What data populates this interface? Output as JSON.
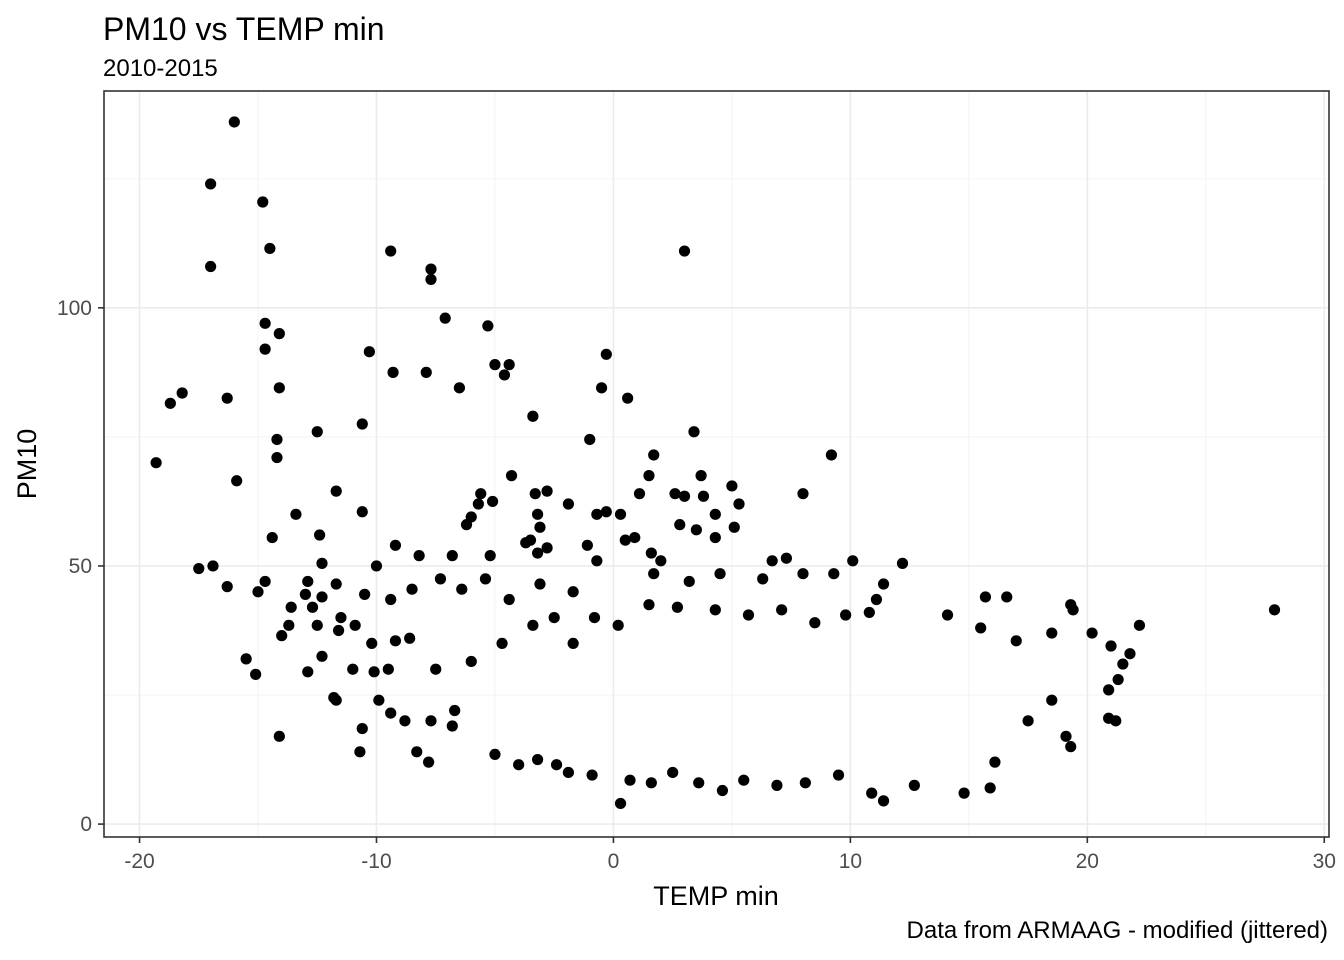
{
  "chart_data": {
    "type": "scatter",
    "title": "PM10 vs TEMP min",
    "subtitle": "2010-2015",
    "xlabel": "TEMP min",
    "ylabel": "PM10",
    "caption": "Data from ARMAAG - modified (jittered)",
    "xlim": [
      -21.5,
      30.2
    ],
    "ylim": [
      -2.5,
      142
    ],
    "xticks": [
      -20,
      -10,
      0,
      10,
      20,
      30
    ],
    "xtick_labels": [
      "-20",
      "-10",
      "0",
      "10",
      "20",
      "30"
    ],
    "yticks": [
      0,
      50,
      100
    ],
    "ytick_labels": [
      "0",
      "50",
      "100"
    ],
    "grid": true,
    "legend": "none",
    "point_color": "#000000",
    "points": [
      [
        -16,
        136
      ],
      [
        -17,
        124
      ],
      [
        -14.8,
        120.5
      ],
      [
        -14.5,
        111.5
      ],
      [
        -17,
        108
      ],
      [
        -9.4,
        111
      ],
      [
        -7.7,
        107.5
      ],
      [
        -7.7,
        105.5
      ],
      [
        3,
        111
      ],
      [
        -7.1,
        98
      ],
      [
        -5.3,
        96.5
      ],
      [
        -14.7,
        97
      ],
      [
        -14.7,
        92
      ],
      [
        -14.1,
        95
      ],
      [
        -10.3,
        91.5
      ],
      [
        -0.3,
        91
      ],
      [
        -5,
        89
      ],
      [
        -4.4,
        89
      ],
      [
        -9.3,
        87.5
      ],
      [
        -7.9,
        87.5
      ],
      [
        -4.6,
        87
      ],
      [
        -6.5,
        84.5
      ],
      [
        -0.5,
        84.5
      ],
      [
        0.6,
        82.5
      ],
      [
        -18.2,
        83.5
      ],
      [
        -18.7,
        81.5
      ],
      [
        -16.3,
        82.5
      ],
      [
        -14.1,
        84.5
      ],
      [
        -10.6,
        77.5
      ],
      [
        -12.5,
        76
      ],
      [
        -14.2,
        74.5
      ],
      [
        -14.2,
        71
      ],
      [
        -3.4,
        79
      ],
      [
        -1,
        74.5
      ],
      [
        3.4,
        76
      ],
      [
        1.7,
        71.5
      ],
      [
        1.5,
        67.5
      ],
      [
        3.7,
        67.5
      ],
      [
        9.2,
        71.5
      ],
      [
        -19.3,
        70
      ],
      [
        -15.9,
        66.5
      ],
      [
        -4.3,
        67.5
      ],
      [
        -11.7,
        64.5
      ],
      [
        -13.4,
        60
      ],
      [
        -10.6,
        60.5
      ],
      [
        -2.8,
        64.5
      ],
      [
        -3.3,
        64
      ],
      [
        -1.9,
        62
      ],
      [
        -5.7,
        62
      ],
      [
        -5.1,
        62.5
      ],
      [
        -5.6,
        64
      ],
      [
        -6.2,
        58
      ],
      [
        -3.2,
        60
      ],
      [
        -6,
        59.5
      ],
      [
        -3.1,
        57.5
      ],
      [
        1.1,
        64
      ],
      [
        2.6,
        64
      ],
      [
        3,
        63.5
      ],
      [
        3.8,
        63.5
      ],
      [
        5,
        65.5
      ],
      [
        5.3,
        62
      ],
      [
        -0.7,
        60
      ],
      [
        -0.3,
        60.5
      ],
      [
        0.3,
        60
      ],
      [
        2.8,
        58
      ],
      [
        4.3,
        60
      ],
      [
        5.1,
        57.5
      ],
      [
        8,
        64
      ],
      [
        -14.4,
        55.5
      ],
      [
        -12.4,
        56
      ],
      [
        -9.2,
        54
      ],
      [
        -3.7,
        54.5
      ],
      [
        -3.5,
        55
      ],
      [
        -2.8,
        53.5
      ],
      [
        -1.1,
        54
      ],
      [
        0.5,
        55
      ],
      [
        0.9,
        55.5
      ],
      [
        3.5,
        57
      ],
      [
        4.3,
        55.5
      ],
      [
        -16.9,
        50
      ],
      [
        -17.5,
        49.5
      ],
      [
        -12.3,
        50.5
      ],
      [
        -10,
        50
      ],
      [
        -8.2,
        52
      ],
      [
        -6.8,
        52
      ],
      [
        -5.2,
        52
      ],
      [
        -3.2,
        52.5
      ],
      [
        -0.7,
        51
      ],
      [
        1.6,
        52.5
      ],
      [
        2,
        51
      ],
      [
        6.7,
        51
      ],
      [
        7.3,
        51.5
      ],
      [
        10.1,
        51
      ],
      [
        12.2,
        50.5
      ],
      [
        -16.3,
        46
      ],
      [
        -14.7,
        47
      ],
      [
        -12.9,
        47
      ],
      [
        -11.7,
        46.5
      ],
      [
        -15,
        45
      ],
      [
        -13,
        44.5
      ],
      [
        -12.3,
        44
      ],
      [
        -10.5,
        44.5
      ],
      [
        -9.4,
        43.5
      ],
      [
        -8.5,
        45.5
      ],
      [
        -7.3,
        47.5
      ],
      [
        -6.4,
        45.5
      ],
      [
        -5.4,
        47.5
      ],
      [
        -4.4,
        43.5
      ],
      [
        -3.1,
        46.5
      ],
      [
        -1.7,
        45
      ],
      [
        1.7,
        48.5
      ],
      [
        3.2,
        47
      ],
      [
        4.5,
        48.5
      ],
      [
        6.3,
        47.5
      ],
      [
        8,
        48.5
      ],
      [
        9.3,
        48.5
      ],
      [
        11.4,
        46.5
      ],
      [
        15.7,
        44
      ],
      [
        16.6,
        44
      ],
      [
        -13.6,
        42
      ],
      [
        -12.7,
        42
      ],
      [
        -11.5,
        40
      ],
      [
        -10.9,
        38.5
      ],
      [
        -13.7,
        38.5
      ],
      [
        -12.5,
        38.5
      ],
      [
        -14,
        36.5
      ],
      [
        -11,
        30
      ],
      [
        -12.9,
        29.5
      ],
      [
        -12.3,
        32.5
      ],
      [
        -11.6,
        37.5
      ],
      [
        -9.2,
        35.5
      ],
      [
        -8.6,
        36
      ],
      [
        -10.2,
        35
      ],
      [
        -9.5,
        30
      ],
      [
        -10.1,
        29.5
      ],
      [
        -11.8,
        24.5
      ],
      [
        -11.7,
        24
      ],
      [
        -9.9,
        24
      ],
      [
        -15.5,
        32
      ],
      [
        -15.1,
        29
      ],
      [
        -14.1,
        17
      ],
      [
        -10.6,
        18.5
      ],
      [
        -10.7,
        14
      ],
      [
        -8.3,
        14
      ],
      [
        -7.8,
        12
      ],
      [
        -8.8,
        20
      ],
      [
        -9.4,
        21.5
      ],
      [
        -7.7,
        20
      ],
      [
        -6.8,
        19
      ],
      [
        -6.7,
        22
      ],
      [
        -7.5,
        30
      ],
      [
        -6,
        31.5
      ],
      [
        -4.7,
        35
      ],
      [
        -3.4,
        38.5
      ],
      [
        -2.5,
        40
      ],
      [
        -1.7,
        35
      ],
      [
        -0.8,
        40
      ],
      [
        0.2,
        38.5
      ],
      [
        1.5,
        42.5
      ],
      [
        2.7,
        42
      ],
      [
        4.3,
        41.5
      ],
      [
        5.7,
        40.5
      ],
      [
        7.1,
        41.5
      ],
      [
        8.5,
        39
      ],
      [
        9.8,
        40.5
      ],
      [
        10.8,
        41
      ],
      [
        11.1,
        43.5
      ],
      [
        14.1,
        40.5
      ],
      [
        15.5,
        38
      ],
      [
        17,
        35.5
      ],
      [
        18.5,
        37
      ],
      [
        19.4,
        41.5
      ],
      [
        19.3,
        42.5
      ],
      [
        20.2,
        37
      ],
      [
        21,
        34.5
      ],
      [
        21.5,
        31
      ],
      [
        21.8,
        33
      ],
      [
        22.2,
        38.5
      ],
      [
        21.3,
        28
      ],
      [
        20.9,
        26
      ],
      [
        21.2,
        20
      ],
      [
        20.9,
        20.5
      ],
      [
        19.3,
        15
      ],
      [
        19.1,
        17
      ],
      [
        18.5,
        24
      ],
      [
        17.5,
        20
      ],
      [
        16.1,
        12
      ],
      [
        15.9,
        7
      ],
      [
        14.8,
        6
      ],
      [
        12.7,
        7.5
      ],
      [
        11.4,
        4.5
      ],
      [
        10.9,
        6
      ],
      [
        9.5,
        9.5
      ],
      [
        8.1,
        8
      ],
      [
        6.9,
        7.5
      ],
      [
        5.5,
        8.5
      ],
      [
        4.6,
        6.5
      ],
      [
        3.6,
        8
      ],
      [
        2.5,
        10
      ],
      [
        1.6,
        8
      ],
      [
        0.7,
        8.5
      ],
      [
        0.3,
        4
      ],
      [
        -0.9,
        9.5
      ],
      [
        -1.9,
        10
      ],
      [
        -2.4,
        11.5
      ],
      [
        -3.2,
        12.5
      ],
      [
        -4,
        11.5
      ],
      [
        -5,
        13.5
      ],
      [
        27.9,
        41.5
      ]
    ]
  }
}
